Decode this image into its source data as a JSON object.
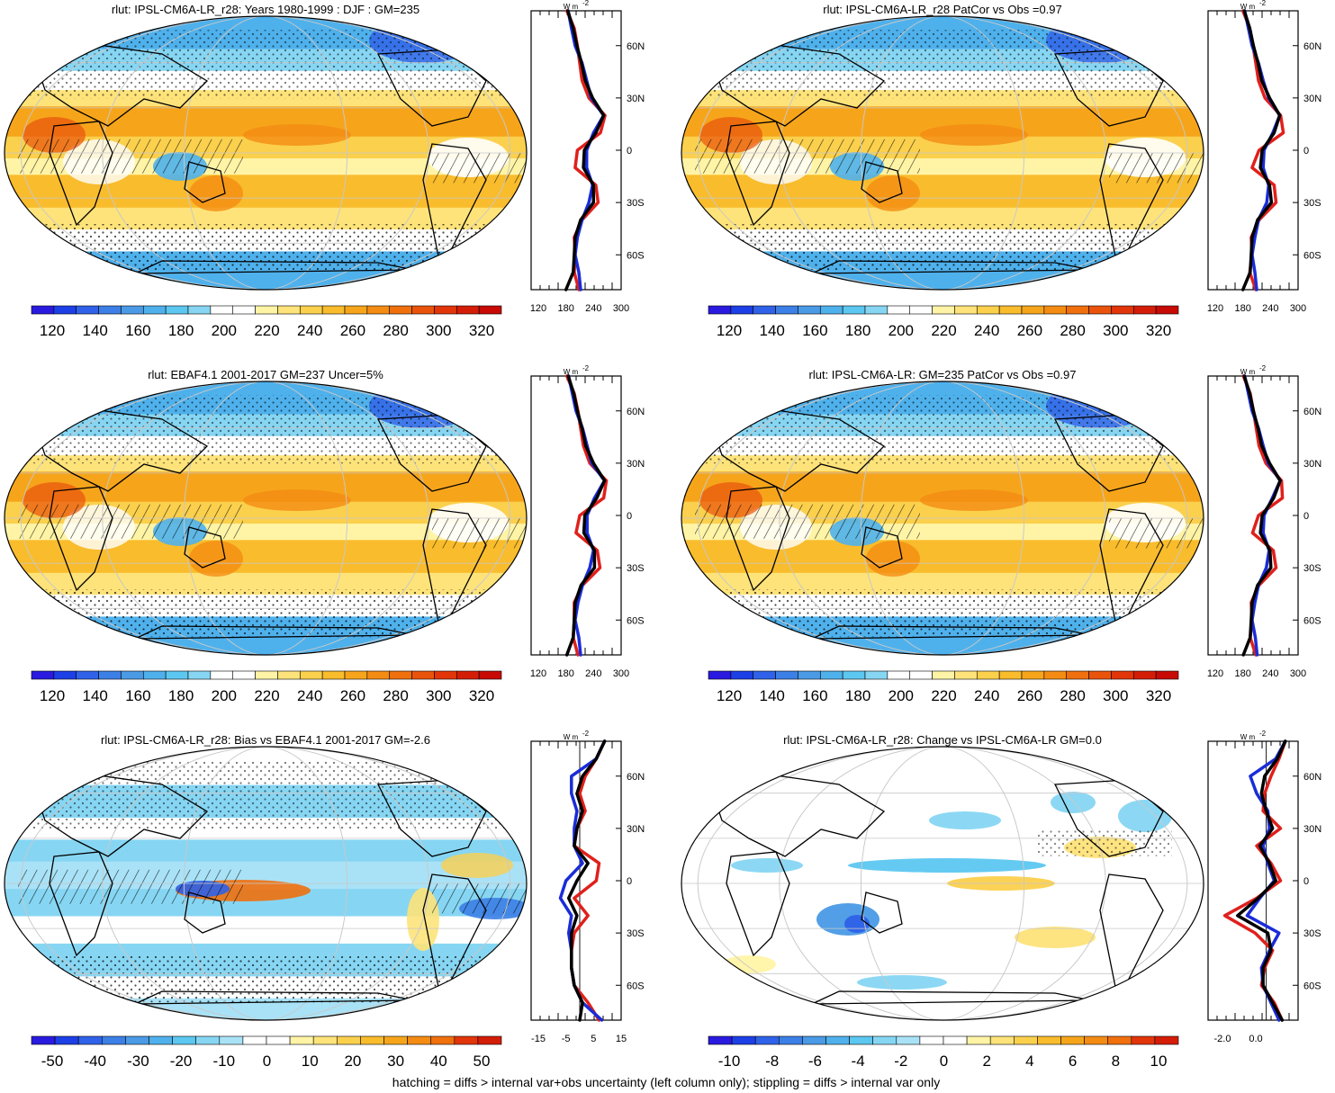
{
  "chart_data": [
    {
      "type": "heatmap",
      "title": "rlut: IPSL-CM6A-LR_r28: Years 1980-1999 : DJF : GM=235",
      "colorbar": {
        "ticks": [
          "120",
          "140",
          "160",
          "180",
          "200",
          "220",
          "240",
          "260",
          "280",
          "300",
          "320"
        ]
      },
      "profile": {
        "unit": "W m",
        "unit_exp": "-2",
        "x_ticks": [
          "120",
          "180",
          "240",
          "300"
        ],
        "y_ticks": [
          "60N",
          "30N",
          "0",
          "30S",
          "60S"
        ],
        "xlim": [
          120,
          300
        ],
        "lat": [
          80,
          70,
          60,
          50,
          40,
          30,
          20,
          10,
          0,
          -10,
          -20,
          -30,
          -40,
          -50,
          -60,
          -70,
          -80
        ],
        "series": [
          {
            "color": "#e0201c",
            "values": [
              182,
              198,
              205,
              210,
              215,
              230,
              265,
              255,
              205,
              200,
              245,
              250,
              215,
              198,
              200,
              198,
              208
            ]
          },
          {
            "color": "#1a2cd8",
            "values": [
              185,
              192,
              200,
              215,
              225,
              235,
              262,
              240,
              225,
              225,
              238,
              230,
              215,
              205,
              200,
              208,
              212
            ]
          },
          {
            "color": "#000000",
            "values": [
              184,
              196,
              204,
              214,
              222,
              238,
              262,
              245,
              220,
              218,
              240,
              240,
              212,
              200,
              198,
              196,
              180
            ]
          }
        ]
      }
    },
    {
      "type": "heatmap",
      "title": "rlut: IPSL-CM6A-LR_r28 PatCor vs Obs =0.97",
      "colorbar": {
        "ticks": [
          "120",
          "140",
          "160",
          "180",
          "200",
          "220",
          "240",
          "260",
          "280",
          "300",
          "320"
        ]
      },
      "profile": {
        "unit": "W m",
        "unit_exp": "-2",
        "x_ticks": [
          "120",
          "180",
          "240",
          "300"
        ],
        "y_ticks": [
          "60N",
          "30N",
          "0",
          "30S",
          "60S"
        ],
        "xlim": [
          120,
          300
        ],
        "lat": [
          80,
          70,
          60,
          50,
          40,
          30,
          20,
          10,
          0,
          -10,
          -20,
          -30,
          -40,
          -50,
          -60,
          -70,
          -80
        ],
        "series": [
          {
            "color": "#e0201c",
            "values": [
              180,
              195,
              202,
              208,
              214,
              228,
              262,
              268,
              215,
              200,
              248,
              252,
              215,
              198,
              200,
              195,
              208
            ]
          },
          {
            "color": "#1a2cd8",
            "values": [
              184,
              192,
              200,
              214,
              224,
              236,
              260,
              245,
              226,
              224,
              236,
              232,
              214,
              206,
              200,
              206,
              210
            ]
          },
          {
            "color": "#000000",
            "values": [
              183,
              195,
              203,
              213,
              221,
              238,
              260,
              248,
              222,
              218,
              238,
              242,
              212,
              200,
              198,
              196,
              180
            ]
          }
        ]
      }
    },
    {
      "type": "heatmap",
      "title": "rlut: EBAF4.1 2001-2017 GM=237 Uncer=5%",
      "colorbar": {
        "ticks": [
          "120",
          "140",
          "160",
          "180",
          "200",
          "220",
          "240",
          "260",
          "280",
          "300",
          "320"
        ]
      },
      "profile": {
        "unit": "W m",
        "unit_exp": "-2",
        "x_ticks": [
          "120",
          "180",
          "240",
          "300"
        ],
        "y_ticks": [
          "60N",
          "30N",
          "0",
          "30S",
          "60S"
        ],
        "xlim": [
          120,
          300
        ],
        "lat": [
          80,
          70,
          60,
          50,
          40,
          30,
          20,
          10,
          0,
          -10,
          -20,
          -30,
          -40,
          -50,
          -60,
          -70,
          -80
        ],
        "series": [
          {
            "color": "#e0201c",
            "values": [
              182,
              198,
              206,
              212,
              218,
              232,
              268,
              262,
              210,
              202,
              248,
              254,
              216,
              198,
              198,
              196,
              206
            ]
          },
          {
            "color": "#1a2cd8",
            "values": [
              186,
              194,
              202,
              216,
              226,
              236,
              264,
              242,
              226,
              226,
              240,
              232,
              216,
              206,
              200,
              208,
              212
            ]
          },
          {
            "color": "#000000",
            "values": [
              185,
              197,
              205,
              215,
              223,
              240,
              264,
              247,
              221,
              219,
              242,
              242,
              213,
              200,
              198,
              196,
              182
            ]
          }
        ]
      }
    },
    {
      "type": "heatmap",
      "title": "rlut: IPSL-CM6A-LR: GM=235 PatCor vs Obs =0.97",
      "colorbar": {
        "ticks": [
          "120",
          "140",
          "160",
          "180",
          "200",
          "220",
          "240",
          "260",
          "280",
          "300",
          "320"
        ]
      },
      "profile": {
        "unit": "W m",
        "unit_exp": "-2",
        "x_ticks": [
          "120",
          "180",
          "240",
          "300"
        ],
        "y_ticks": [
          "60N",
          "30N",
          "0",
          "30S",
          "60S"
        ],
        "xlim": [
          120,
          300
        ],
        "lat": [
          80,
          70,
          60,
          50,
          40,
          30,
          20,
          10,
          0,
          -10,
          -20,
          -30,
          -40,
          -50,
          -60,
          -70,
          -80
        ],
        "series": [
          {
            "color": "#e0201c",
            "values": [
              181,
              196,
              203,
              209,
              215,
              230,
              264,
              266,
              214,
              201,
              246,
              252,
              215,
              198,
              200,
              196,
              208
            ]
          },
          {
            "color": "#1a2cd8",
            "values": [
              184,
              192,
              200,
              214,
              224,
              235,
              261,
              244,
              226,
              224,
              237,
              231,
              214,
              206,
              200,
              207,
              211
            ]
          },
          {
            "color": "#000000",
            "values": [
              183,
              195,
              203,
              213,
              221,
              238,
              261,
              247,
              222,
              218,
              239,
              241,
              212,
              200,
              198,
              196,
              181
            ]
          }
        ]
      }
    },
    {
      "type": "heatmap",
      "title": "rlut: IPSL-CM6A-LR_r28: Bias vs EBAF4.1 2001-2017 GM=-2.6",
      "colorbar": {
        "ticks": [
          "-50",
          "-40",
          "-30",
          "-20",
          "-10",
          "0",
          "10",
          "20",
          "30",
          "40",
          "50"
        ]
      },
      "profile": {
        "unit": "W m",
        "unit_exp": "-2",
        "x_ticks": [
          "-15",
          "-5",
          "5",
          "15"
        ],
        "y_ticks": [
          "60N",
          "30N",
          "0",
          "30S",
          "60S"
        ],
        "xlim": [
          -15,
          15
        ],
        "lat": [
          80,
          70,
          60,
          50,
          40,
          30,
          20,
          10,
          0,
          -10,
          -20,
          -30,
          -40,
          -50,
          -60,
          -70,
          -80
        ],
        "series": [
          {
            "color": "#e0201c",
            "values": [
              9,
              6,
              2,
              0,
              2,
              -1,
              -2,
              7,
              6,
              -2,
              3,
              -2,
              -3,
              -3,
              -2,
              3,
              7
            ]
          },
          {
            "color": "#1a2cd8",
            "values": [
              9,
              6,
              -3,
              -3,
              -1,
              -2,
              -2,
              1,
              -5,
              -7,
              -3,
              -4,
              -3,
              -3,
              -2,
              1,
              8
            ]
          },
          {
            "color": "#000000",
            "values": [
              9,
              6,
              1,
              -1,
              1,
              -1,
              -2,
              3,
              -1,
              -4,
              -1,
              -3,
              -3,
              -3,
              -2,
              1,
              0
            ]
          }
        ]
      }
    },
    {
      "type": "heatmap",
      "title": "rlut: IPSL-CM6A-LR_r28: Change vs IPSL-CM6A-LR GM=0.0",
      "colorbar": {
        "ticks": [
          "-10",
          "-8",
          "-6",
          "-4",
          "-2",
          "0",
          "2",
          "4",
          "6",
          "8",
          "10"
        ]
      },
      "profile": {
        "unit": "W m",
        "unit_exp": "-2",
        "x_ticks": [
          "-2.0",
          "0.0"
        ],
        "y_ticks": [
          "60N",
          "30N",
          "0",
          "30S",
          "60S"
        ],
        "xlim": [
          -3.2,
          2.0
        ],
        "lat": [
          80,
          70,
          60,
          50,
          40,
          30,
          20,
          10,
          0,
          -10,
          -20,
          -30,
          -40,
          -50,
          -60,
          -70,
          -80
        ],
        "series": [
          {
            "color": "#e0201c",
            "values": [
              1.2,
              0.8,
              0.3,
              -0.1,
              -0.2,
              0.9,
              -0.6,
              0.3,
              0.9,
              -0.6,
              -2.6,
              -0.7,
              0.4,
              -0.1,
              -0.3,
              0.5,
              1.0
            ]
          },
          {
            "color": "#1a2cd8",
            "values": [
              1.2,
              0.6,
              -1.0,
              -0.6,
              0.1,
              0.2,
              -0.2,
              0.1,
              0.5,
              -0.4,
              -1.2,
              0.8,
              0.2,
              -0.3,
              -0.2,
              0.3,
              0.8
            ]
          },
          {
            "color": "#000000",
            "values": [
              1.2,
              0.7,
              -0.1,
              -0.3,
              0.0,
              0.4,
              -0.4,
              0.2,
              0.6,
              -0.5,
              -1.8,
              0.1,
              0.3,
              -0.2,
              -0.2,
              0.4,
              1.0
            ]
          }
        ]
      }
    }
  ],
  "palettes": {
    "absolute": [
      "#2a1ae0",
      "#1d3fe6",
      "#2f62e8",
      "#3c7fe6",
      "#4a9ae6",
      "#4fb1ec",
      "#5cc7f0",
      "#86d6f3",
      "#ffffff",
      "#ffffff",
      "#fff4a6",
      "#fde37a",
      "#fbd04d",
      "#f9bc2c",
      "#f6a51b",
      "#f48c13",
      "#f0700e",
      "#ea530b",
      "#e23509",
      "#d41d07",
      "#c70a04"
    ],
    "bias": [
      "#2a1ae0",
      "#1d3fe6",
      "#2f62e8",
      "#3c7fe6",
      "#4a9ae6",
      "#4fb1ec",
      "#5cc7f0",
      "#86d6f3",
      "#a9e2f7",
      "#ffffff",
      "#ffffff",
      "#fff4a6",
      "#fde37a",
      "#fbd04d",
      "#f9bc2c",
      "#f6a51b",
      "#f48c13",
      "#f0700e",
      "#e23509",
      "#d41d07"
    ]
  },
  "footnote": "hatching = diffs > internal var+obs uncertainty (left column only); stippling = diffs > internal var only"
}
